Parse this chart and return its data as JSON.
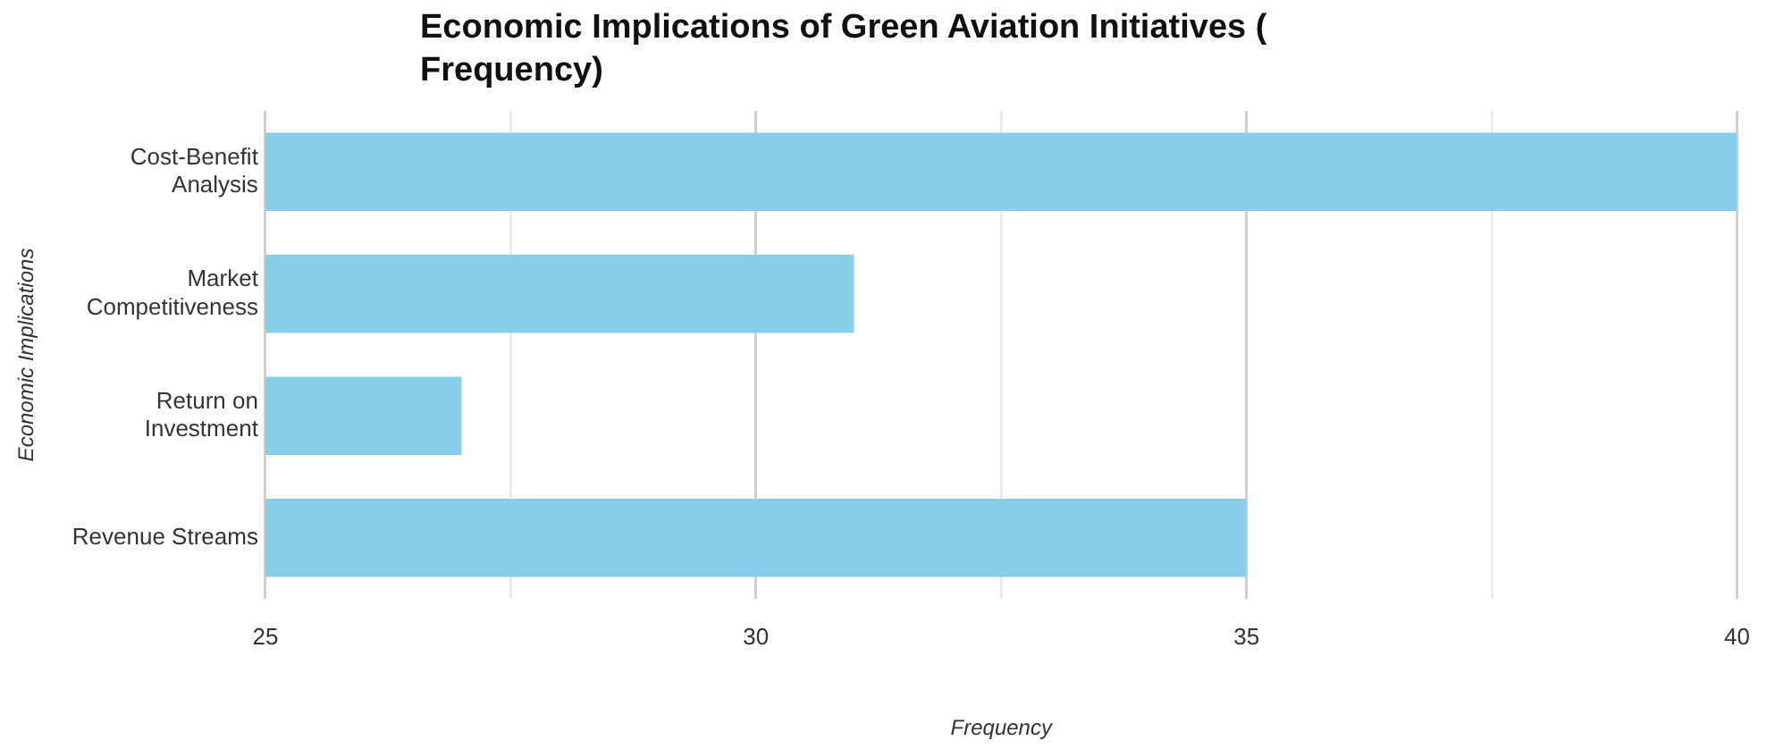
{
  "chart_data": {
    "type": "bar",
    "orientation": "horizontal",
    "title": "Economic Implications of Green Aviation Initiatives ( Frequency)",
    "xlabel": "Frequency",
    "ylabel": "Economic Implications",
    "categories": [
      "Cost-Benefit Analysis",
      "Market Competitiveness",
      "Return on Investment",
      "Revenue Streams"
    ],
    "values": [
      40,
      31,
      27,
      35
    ],
    "color": "#87ceeb",
    "xlim": [
      25,
      40
    ],
    "xticks": [
      25,
      {
        "value": 27.5,
        "label": null
      },
      30,
      {
        "value": 32.5,
        "label": null
      },
      35,
      {
        "value": 37.5,
        "label": null
      },
      40
    ],
    "grid": "x"
  }
}
